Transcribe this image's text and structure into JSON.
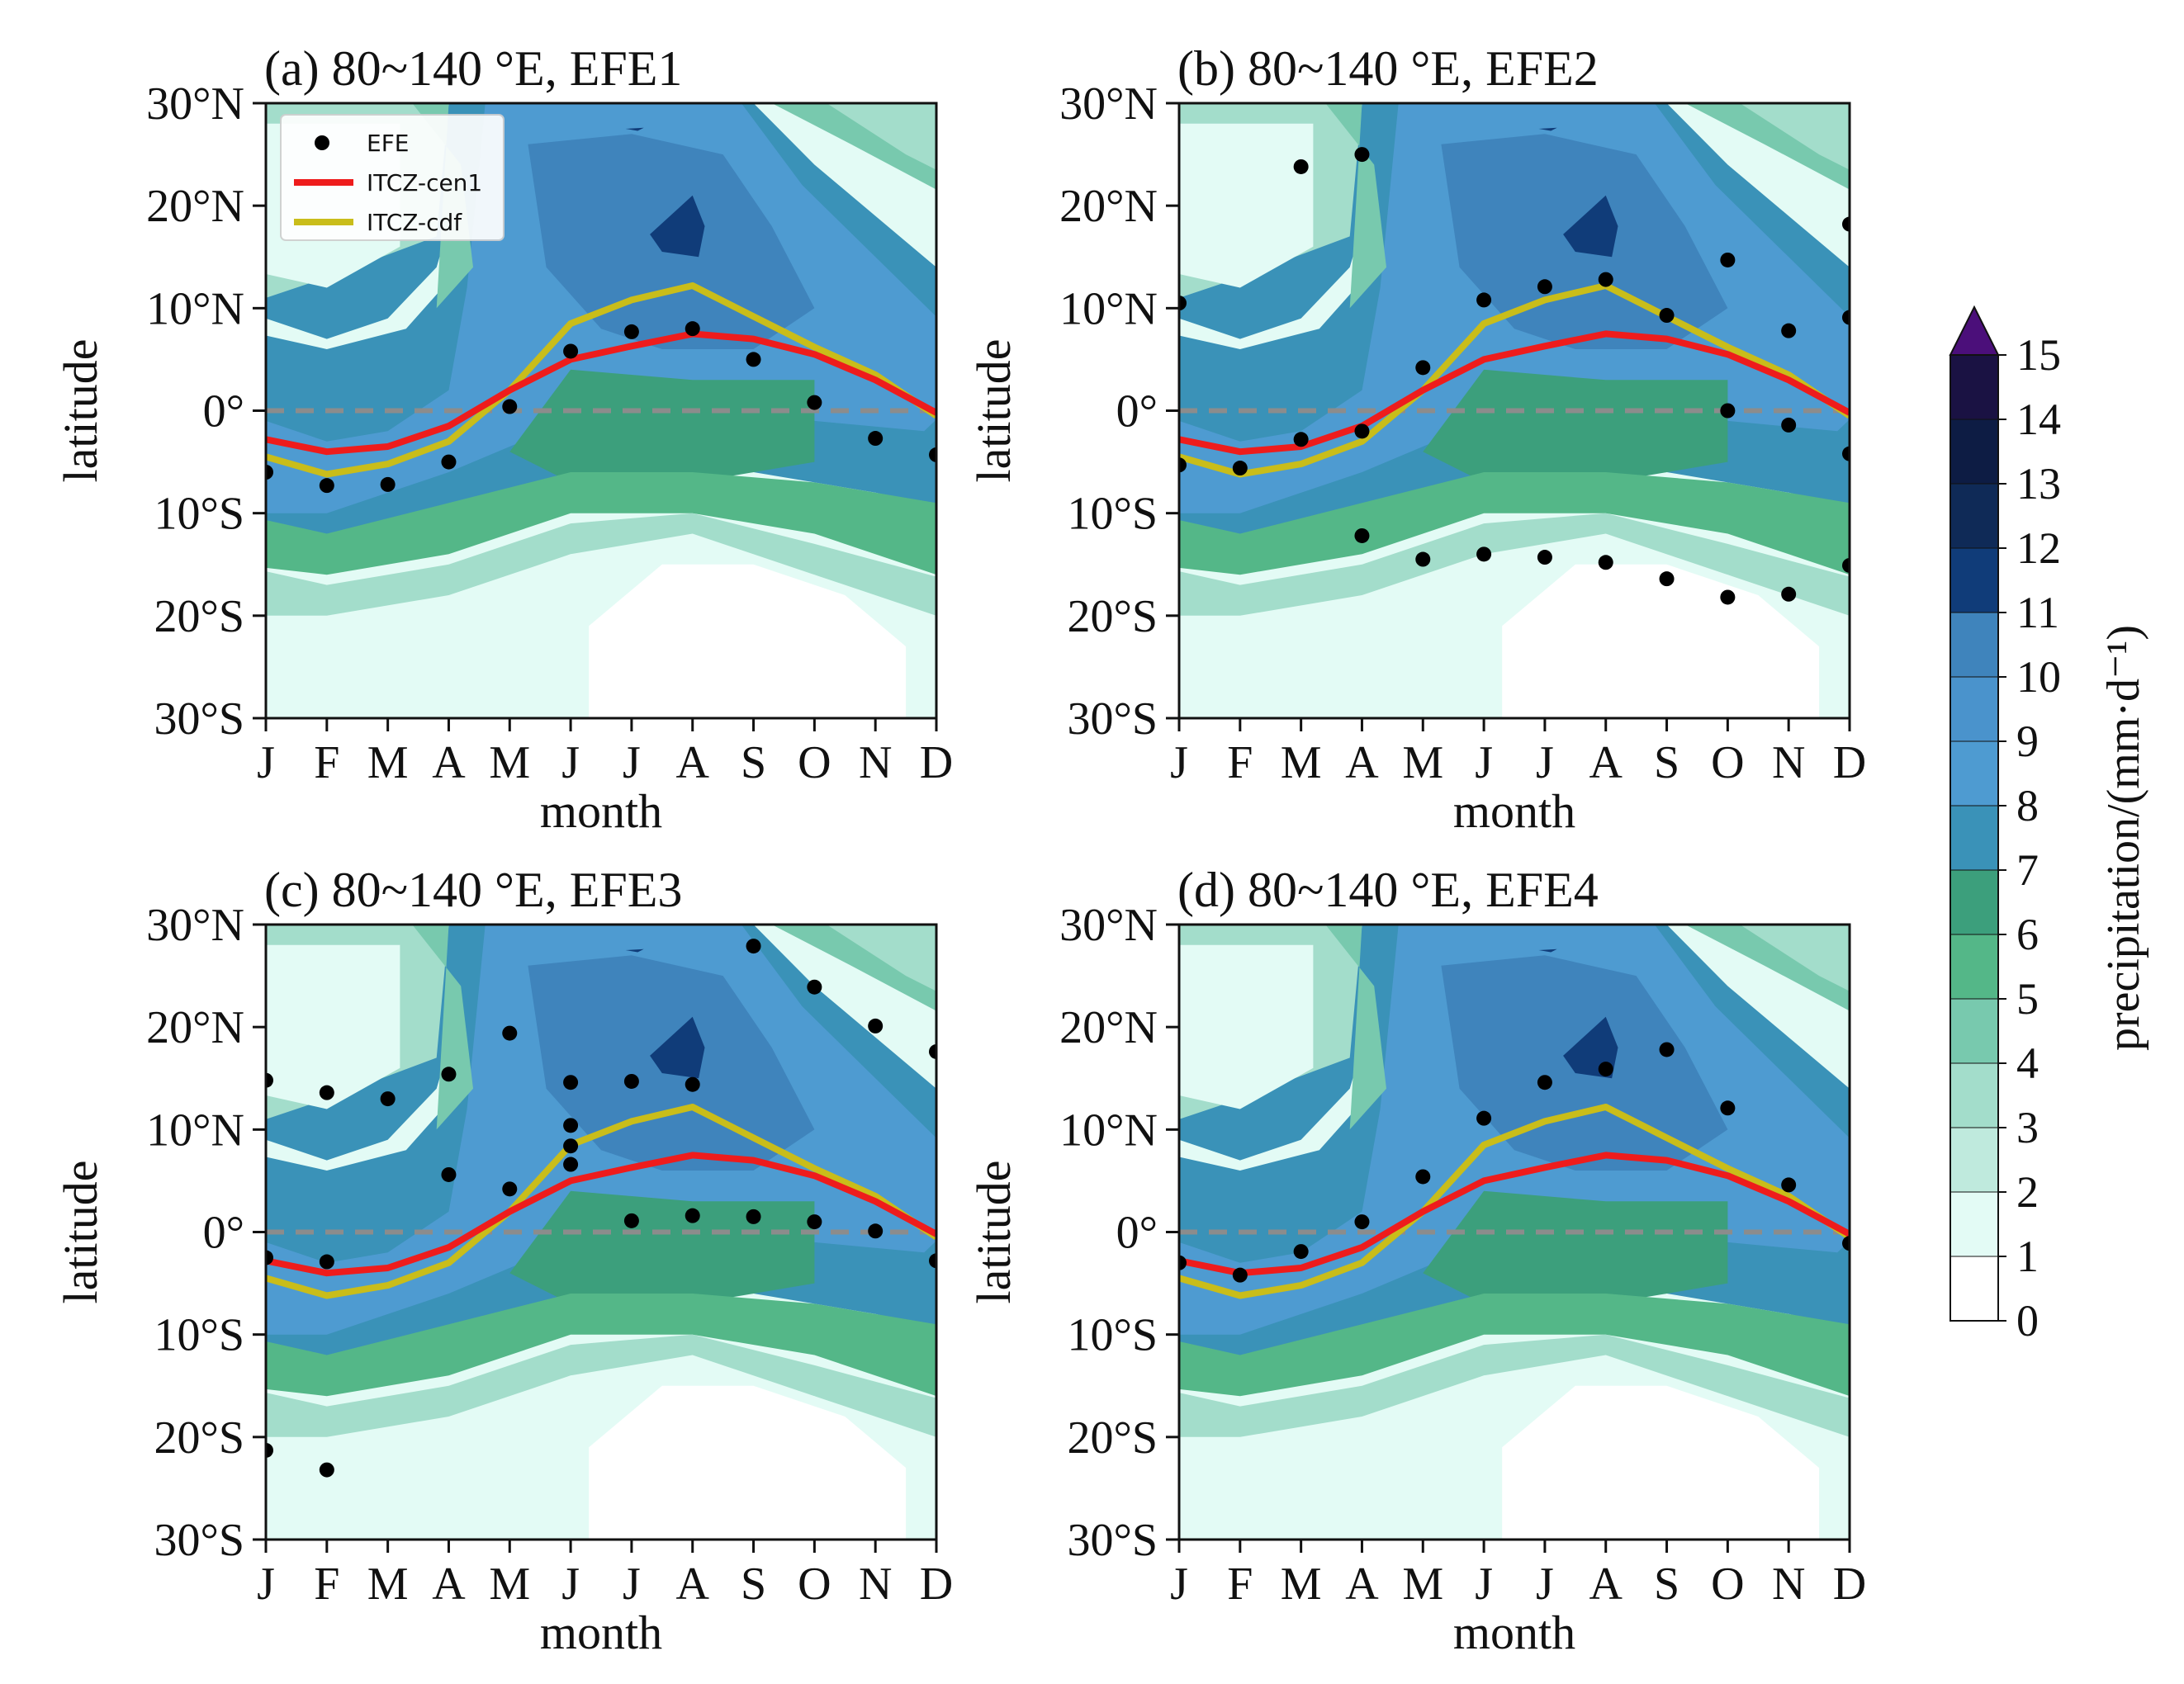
{
  "chart_data": {
    "type": "heatmap",
    "grid": false,
    "months": [
      "J",
      "F",
      "M",
      "A",
      "M",
      "J",
      "J",
      "A",
      "S",
      "O",
      "N",
      "D"
    ],
    "xlabel": "month",
    "ylabel": "latitude",
    "ylim": [
      -30,
      30
    ],
    "yticks": [
      30,
      20,
      10,
      0,
      -10,
      -20,
      -30
    ],
    "ytick_labels": [
      "30°N",
      "20°N",
      "10°N",
      "0°",
      "10°S",
      "20°S",
      "30°S"
    ],
    "equator_line": 0,
    "legend": {
      "position": "top-left",
      "entries": [
        {
          "label": "EFE",
          "marker": "dot",
          "color": "#000000"
        },
        {
          "label": "ITCZ-cen1",
          "marker": "line",
          "color": "#ee1c1c"
        },
        {
          "label": "ITCZ-cdf",
          "marker": "line",
          "color": "#c9bd1a"
        }
      ]
    },
    "colorbar": {
      "label": "precipitation/(mm·d⁻¹)",
      "levels": [
        0,
        1,
        2,
        3,
        4,
        5,
        6,
        7,
        8,
        9,
        10,
        11,
        12,
        13,
        14,
        15
      ],
      "extend": "max",
      "colors": [
        "#ffffff",
        "#e3fbf5",
        "#bfeadd",
        "#a3ddcb",
        "#78c9ae",
        "#54b788",
        "#3c9f7c",
        "#3a92b8",
        "#4e9bd1",
        "#4a93cc",
        "#3f84bc",
        "#103c79",
        "#0f2a57",
        "#0d1c44",
        "#1a1243",
        "#4b0f7a"
      ]
    },
    "itcz_cen1": [
      -2.8,
      -4.0,
      -3.5,
      -1.5,
      2.0,
      5.0,
      6.3,
      7.5,
      7.0,
      5.5,
      3.0,
      -0.2
    ],
    "itcz_cdf": [
      -4.5,
      -6.2,
      -5.2,
      -3.0,
      2.0,
      8.5,
      10.8,
      12.2,
      9.2,
      6.2,
      3.5,
      -0.5
    ],
    "panels": [
      {
        "title": "(a) 80~140 °E, EFE1",
        "efe": [
          {
            "x": 0,
            "y": -6.0
          },
          {
            "x": 1,
            "y": -7.3
          },
          {
            "x": 2,
            "y": -7.2
          },
          {
            "x": 3,
            "y": -5.0
          },
          {
            "x": 4,
            "y": 0.4
          },
          {
            "x": 5,
            "y": 5.8
          },
          {
            "x": 6,
            "y": 7.7
          },
          {
            "x": 7,
            "y": 8.0
          },
          {
            "x": 8,
            "y": 5.0
          },
          {
            "x": 9,
            "y": 0.8
          },
          {
            "x": 10,
            "y": -2.7
          },
          {
            "x": 11,
            "y": -4.3
          }
        ]
      },
      {
        "title": "(b) 80~140 °E, EFE2",
        "efe": [
          {
            "x": 0,
            "y": 10.5
          },
          {
            "x": 0,
            "y": -5.3
          },
          {
            "x": 1,
            "y": -5.6
          },
          {
            "x": 2,
            "y": 23.8
          },
          {
            "x": 2,
            "y": -2.8
          },
          {
            "x": 3,
            "y": 25.0
          },
          {
            "x": 3,
            "y": -2.0
          },
          {
            "x": 3,
            "y": -12.2
          },
          {
            "x": 4,
            "y": 4.2
          },
          {
            "x": 4,
            "y": -14.5
          },
          {
            "x": 5,
            "y": 10.8
          },
          {
            "x": 5,
            "y": -14.0
          },
          {
            "x": 6,
            "y": 12.1
          },
          {
            "x": 6,
            "y": -14.3
          },
          {
            "x": 7,
            "y": 12.8
          },
          {
            "x": 7,
            "y": -14.8
          },
          {
            "x": 8,
            "y": 9.3
          },
          {
            "x": 8,
            "y": -16.4
          },
          {
            "x": 9,
            "y": 14.7
          },
          {
            "x": 9,
            "y": 0.0
          },
          {
            "x": 9,
            "y": -18.2
          },
          {
            "x": 10,
            "y": 7.8
          },
          {
            "x": 10,
            "y": -1.4
          },
          {
            "x": 10,
            "y": -17.9
          },
          {
            "x": 11,
            "y": 18.2
          },
          {
            "x": 11,
            "y": 9.1
          },
          {
            "x": 11,
            "y": -4.2
          },
          {
            "x": 11,
            "y": -15.1
          }
        ]
      },
      {
        "title": "(c) 80~140 °E, EFE3",
        "efe": [
          {
            "x": 0,
            "y": 14.8
          },
          {
            "x": 0,
            "y": -2.5
          },
          {
            "x": 0,
            "y": -21.3
          },
          {
            "x": 1,
            "y": 13.6
          },
          {
            "x": 1,
            "y": -2.9
          },
          {
            "x": 1,
            "y": -23.2
          },
          {
            "x": 2,
            "y": 13.0
          },
          {
            "x": 3,
            "y": 15.4
          },
          {
            "x": 3,
            "y": 5.6
          },
          {
            "x": 4,
            "y": 19.4
          },
          {
            "x": 4,
            "y": 4.2
          },
          {
            "x": 5,
            "y": 14.6
          },
          {
            "x": 5,
            "y": 10.4
          },
          {
            "x": 5,
            "y": 8.4
          },
          {
            "x": 5,
            "y": 6.6
          },
          {
            "x": 6,
            "y": 14.7
          },
          {
            "x": 6,
            "y": 1.1
          },
          {
            "x": 7,
            "y": 14.4
          },
          {
            "x": 7,
            "y": 1.6
          },
          {
            "x": 8,
            "y": 27.9
          },
          {
            "x": 8,
            "y": 1.5
          },
          {
            "x": 9,
            "y": 23.9
          },
          {
            "x": 9,
            "y": 1.0
          },
          {
            "x": 10,
            "y": 20.1
          },
          {
            "x": 10,
            "y": 0.1
          },
          {
            "x": 11,
            "y": 17.6
          },
          {
            "x": 11,
            "y": -2.8
          }
        ]
      },
      {
        "title": "(d) 80~140 °E, EFE4",
        "efe": [
          {
            "x": 0,
            "y": -3.0
          },
          {
            "x": 1,
            "y": -4.2
          },
          {
            "x": 2,
            "y": -1.9
          },
          {
            "x": 3,
            "y": 1.0
          },
          {
            "x": 4,
            "y": 5.4
          },
          {
            "x": 5,
            "y": 11.1
          },
          {
            "x": 6,
            "y": 14.6
          },
          {
            "x": 7,
            "y": 15.9
          },
          {
            "x": 8,
            "y": 17.8
          },
          {
            "x": 9,
            "y": 12.1
          },
          {
            "x": 10,
            "y": 4.6
          },
          {
            "x": 11,
            "y": -1.1
          }
        ]
      }
    ]
  }
}
